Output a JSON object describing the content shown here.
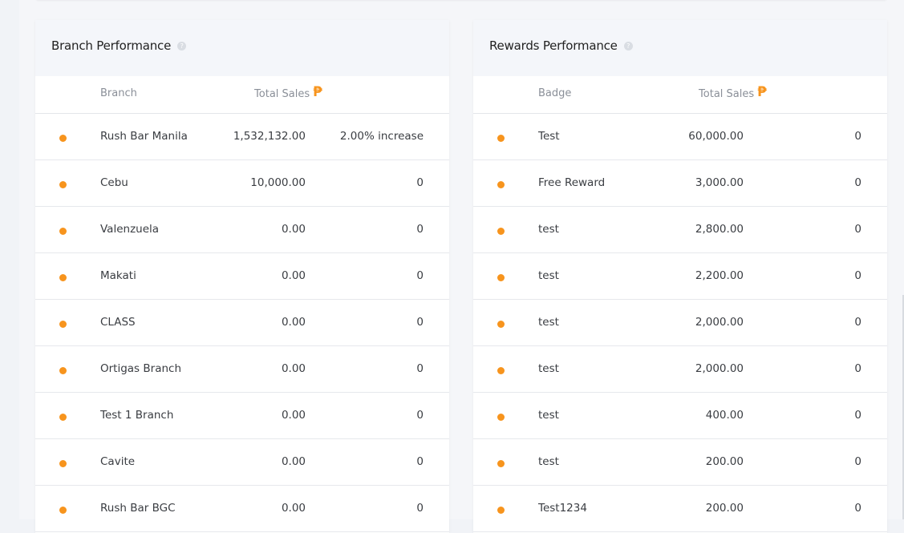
{
  "branch_panel": {
    "title": "Branch Performance",
    "help_icon": "question-icon",
    "columns": {
      "name": "Branch",
      "sales": "Total Sales",
      "currency_icon": "peso-icon"
    },
    "rows": [
      {
        "name": "Rush Bar Manila",
        "sales": "1,532,132.00",
        "change": "2.00% increase"
      },
      {
        "name": "Cebu",
        "sales": "10,000.00",
        "change": "0"
      },
      {
        "name": "Valenzuela",
        "sales": "0.00",
        "change": "0"
      },
      {
        "name": "Makati",
        "sales": "0.00",
        "change": "0"
      },
      {
        "name": "CLASS",
        "sales": "0.00",
        "change": "0"
      },
      {
        "name": "Ortigas Branch",
        "sales": "0.00",
        "change": "0"
      },
      {
        "name": "Test 1 Branch",
        "sales": "0.00",
        "change": "0"
      },
      {
        "name": "Cavite",
        "sales": "0.00",
        "change": "0"
      },
      {
        "name": "Rush Bar BGC",
        "sales": "0.00",
        "change": "0"
      }
    ]
  },
  "rewards_panel": {
    "title": "Rewards Performance",
    "help_icon": "question-icon",
    "columns": {
      "name": "Badge",
      "sales": "Total Sales",
      "currency_icon": "peso-icon"
    },
    "rows": [
      {
        "name": "Test",
        "sales": "60,000.00",
        "change": "0"
      },
      {
        "name": "Free Reward",
        "sales": "3,000.00",
        "change": "0"
      },
      {
        "name": "test",
        "sales": "2,800.00",
        "change": "0"
      },
      {
        "name": "test",
        "sales": "2,200.00",
        "change": "0"
      },
      {
        "name": "test",
        "sales": "2,000.00",
        "change": "0"
      },
      {
        "name": "test",
        "sales": "2,000.00",
        "change": "0"
      },
      {
        "name": "test",
        "sales": "400.00",
        "change": "0"
      },
      {
        "name": "test",
        "sales": "200.00",
        "change": "0"
      },
      {
        "name": "Test1234",
        "sales": "200.00",
        "change": "0"
      }
    ]
  },
  "colors": {
    "accent": "#f7941d",
    "header_bg": "#f4f6fa"
  }
}
